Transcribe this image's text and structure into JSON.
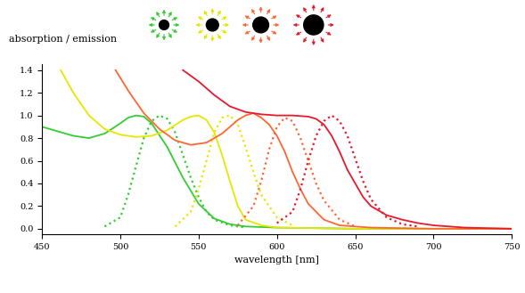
{
  "chart_data": {
    "type": "line",
    "x_label": "wavelength [nm]",
    "y_label": "absorption / emission",
    "xlim": [
      450,
      750
    ],
    "xticks": [
      450,
      500,
      550,
      600,
      650,
      700,
      750
    ],
    "ylim": [
      -0.05,
      1.45
    ],
    "yticks": [
      {
        "value": 0,
        "label": "0.0"
      },
      {
        "value": 0.2,
        "label": "0.2"
      },
      {
        "value": 0.4,
        "label": "0.4"
      },
      {
        "value": 0.6,
        "label": "0.6"
      },
      {
        "value": 0.8,
        "label": "0.8"
      },
      {
        "value": 1.0,
        "label": "1.0"
      },
      {
        "value": 1.2,
        "label": "1.2"
      },
      {
        "value": 1.4,
        "label": "1.4"
      }
    ],
    "grid": false,
    "series": [
      {
        "color": "#33cc33",
        "line_style": "solid",
        "x": [
          450,
          460,
          470,
          480,
          490,
          500,
          505,
          510,
          515,
          520,
          530,
          540,
          550,
          560,
          570,
          580,
          600,
          650,
          700,
          750
        ],
        "values": [
          0.9,
          0.86,
          0.82,
          0.8,
          0.84,
          0.93,
          0.98,
          1.0,
          0.99,
          0.93,
          0.72,
          0.45,
          0.22,
          0.09,
          0.04,
          0.02,
          0.01,
          0.0,
          0.0,
          0.0
        ]
      },
      {
        "color": "#33cc33",
        "line_style": "dotted",
        "x": [
          490,
          500,
          505,
          510,
          515,
          520,
          525,
          530,
          535,
          540,
          545,
          550,
          555,
          560,
          570,
          580
        ],
        "values": [
          0.02,
          0.1,
          0.3,
          0.55,
          0.8,
          0.95,
          1.0,
          0.97,
          0.85,
          0.65,
          0.45,
          0.28,
          0.15,
          0.08,
          0.03,
          0.01
        ]
      },
      {
        "color": "#e6e600",
        "line_style": "solid",
        "x": [
          462,
          470,
          480,
          490,
          500,
          510,
          520,
          530,
          540,
          545,
          550,
          555,
          560,
          565,
          570,
          575,
          580,
          590,
          600,
          650,
          700,
          750
        ],
        "values": [
          1.4,
          1.2,
          1.0,
          0.88,
          0.83,
          0.81,
          0.82,
          0.87,
          0.96,
          0.99,
          1.0,
          0.96,
          0.85,
          0.65,
          0.42,
          0.2,
          0.08,
          0.03,
          0.01,
          0.0,
          0.0,
          0.0
        ]
      },
      {
        "color": "#e6e600",
        "line_style": "dotted",
        "x": [
          535,
          545,
          550,
          555,
          560,
          565,
          570,
          575,
          580,
          585,
          590,
          600,
          610
        ],
        "values": [
          0.02,
          0.15,
          0.35,
          0.6,
          0.85,
          0.98,
          1.0,
          0.92,
          0.72,
          0.5,
          0.3,
          0.1,
          0.03
        ]
      },
      {
        "color": "#ff6633",
        "line_style": "solid",
        "x": [
          497,
          505,
          515,
          525,
          535,
          545,
          555,
          565,
          575,
          580,
          585,
          590,
          595,
          600,
          605,
          610,
          615,
          620,
          630,
          640,
          660,
          700,
          750
        ],
        "values": [
          1.4,
          1.22,
          1.02,
          0.88,
          0.78,
          0.74,
          0.76,
          0.84,
          0.96,
          1.0,
          1.02,
          0.98,
          0.92,
          0.82,
          0.68,
          0.5,
          0.35,
          0.22,
          0.08,
          0.03,
          0.01,
          0.0,
          0.0
        ]
      },
      {
        "color": "#ff6633",
        "line_style": "dotted",
        "x": [
          575,
          585,
          590,
          595,
          600,
          605,
          610,
          615,
          620,
          625,
          630,
          640,
          650
        ],
        "values": [
          0.03,
          0.2,
          0.42,
          0.7,
          0.9,
          0.98,
          0.95,
          0.8,
          0.6,
          0.4,
          0.25,
          0.08,
          0.02
        ]
      },
      {
        "color": "#e8192c",
        "line_style": "solid",
        "x": [
          540,
          550,
          560,
          570,
          580,
          590,
          600,
          610,
          620,
          625,
          630,
          635,
          640,
          645,
          650,
          655,
          660,
          670,
          680,
          690,
          700,
          720,
          750
        ],
        "values": [
          1.4,
          1.3,
          1.18,
          1.08,
          1.03,
          1.01,
          1.0,
          1.0,
          0.99,
          0.97,
          0.92,
          0.82,
          0.68,
          0.52,
          0.4,
          0.28,
          0.2,
          0.12,
          0.08,
          0.05,
          0.03,
          0.01,
          0.0
        ]
      },
      {
        "color": "#e8192c",
        "line_style": "dotted",
        "x": [
          600,
          610,
          615,
          620,
          625,
          630,
          635,
          640,
          645,
          650,
          655,
          660,
          670,
          680,
          690
        ],
        "values": [
          0.05,
          0.15,
          0.35,
          0.6,
          0.82,
          0.95,
          1.0,
          0.95,
          0.82,
          0.62,
          0.42,
          0.26,
          0.1,
          0.04,
          0.02
        ]
      }
    ]
  }
}
